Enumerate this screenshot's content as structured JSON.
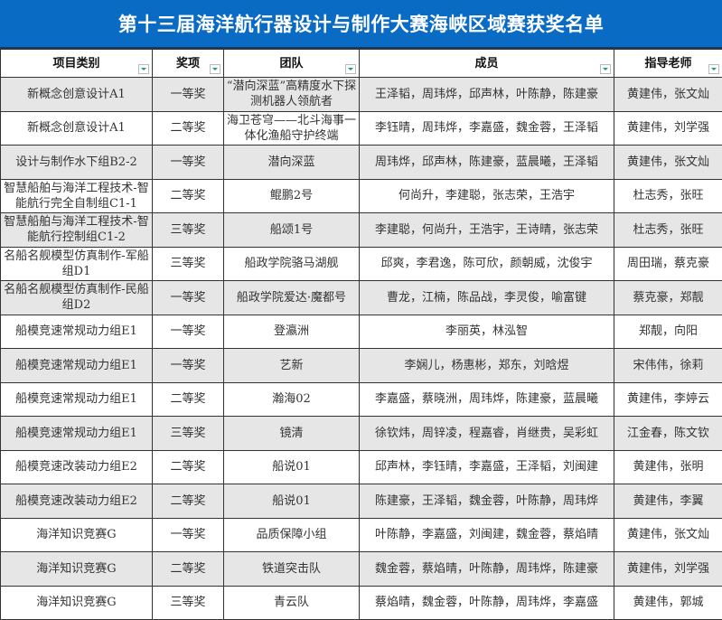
{
  "title": "第十三届海洋航行器设计与制作大赛海峡区域赛获奖名单",
  "colors": {
    "title_bg": "#0a6bc4",
    "row_alt": "#e6e6e6",
    "filter_arrow": "#1aa06a"
  },
  "columns": [
    "项目类别",
    "奖项",
    "团队",
    "成员",
    "指导老师"
  ],
  "rows": [
    [
      "新概念创意设计A1",
      "一等奖",
      "“潜向深蓝”高精度水下探测机器人领航者",
      "王泽韬，周玮烨，邱声林，叶陈静，陈建豪",
      "黄建伟，张文灿"
    ],
    [
      "新概念创意设计A1",
      "二等奖",
      "海卫苍穹——北斗海事一体化渔船守护终端",
      "李钰晴，周玮烨，李嘉盛，魏金蓉，王泽韬",
      "黄建伟，刘学强"
    ],
    [
      "设计与制作水下组B2-2",
      "一等奖",
      "潜向深蓝",
      "周玮烨，邱声林，陈建豪，蓝晨曦，王泽韬",
      "黄建伟，张文灿"
    ],
    [
      "智慧船舶与海洋工程技术-智能航行完全自制组C1-1",
      "二等奖",
      "鲲鹏2号",
      "何尚升，李建聪，张志荣，王浩宇",
      "杜志秀，张旺"
    ],
    [
      "智慧船舶与海洋工程技术-智能航行控制组C1-2",
      "三等奖",
      "船颂1号",
      "李建聪，何尚升，王浩宇，王诗晴，张志荣",
      "杜志秀，张旺"
    ],
    [
      "名船名舰模型仿真制作-军船组D1",
      "三等奖",
      "船政学院骆马湖舰",
      "邱爽，李君逸，陈可欣，颜朝威，沈俊宇",
      "周田瑞，蔡克豪"
    ],
    [
      "名船名舰模型仿真制作-民船组D2",
      "一等奖",
      "船政学院爱达·魔都号",
      "曹龙，江楠，陈品战，李灵俊，喻富键",
      "蔡克豪，郑靓"
    ],
    [
      "船模竞速常规动力组E1",
      "一等奖",
      "登瀛洲",
      "李丽英，林泓智",
      "郑靓，向阳"
    ],
    [
      "船模竞速常规动力组E1",
      "一等奖",
      "艺新",
      "李娴儿，杨惠彬，郑东，刘晗煜",
      "宋伟伟，徐莉"
    ],
    [
      "船模竞速常规动力组E1",
      "二等奖",
      "瀚海02",
      "李嘉盛，蔡晓洲，周玮烨，陈建豪，蓝晨曦",
      "黄建伟，李婷云"
    ],
    [
      "船模竞速常规动力组E1",
      "三等奖",
      "镜清",
      "徐钦炜，周锌凌，程嘉睿，肖继贵，吴彩虹",
      "江金春，陈文钦"
    ],
    [
      "船模竞速改装动力组E2",
      "二等奖",
      "船说01",
      "邱声林，李钰晴，李嘉盛，王泽韬，刘闽建",
      "黄建伟，张明"
    ],
    [
      "船模竞速改装动力组E2",
      "二等奖",
      "船说01",
      "陈建豪，王泽韬，魏金蓉，叶陈静，周玮烨",
      "黄建伟，李翼"
    ],
    [
      "海洋知识竞赛G",
      "一等奖",
      "品质保障小组",
      "叶陈静，李嘉盛，刘闽建，魏金蓉，蔡焰晴",
      "黄建伟，张文灿"
    ],
    [
      "海洋知识竞赛G",
      "二等奖",
      "铁道突击队",
      "魏金蓉，蔡焰晴，叶陈静，周玮烨，陈建豪",
      "黄建伟，刘学强"
    ],
    [
      "海洋知识竞赛G",
      "三等奖",
      "青云队",
      "蔡焰晴，魏金蓉，叶陈静，周玮烨，李嘉盛",
      "黄建伟，郭城"
    ]
  ]
}
